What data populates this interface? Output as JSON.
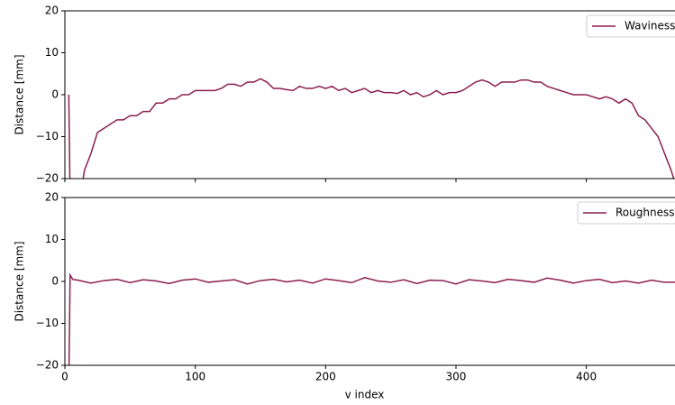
{
  "chart_data": [
    {
      "type": "line",
      "ylabel": "Distance [mm]",
      "legend": "upper right",
      "grid": false,
      "xlim": [
        0,
        468
      ],
      "xticks": [
        0,
        100,
        200,
        300,
        400
      ],
      "ylim": [
        -20,
        20
      ],
      "yticks": [
        {
          "value": -20,
          "label": "−20"
        },
        {
          "value": -10,
          "label": "−10"
        },
        0,
        10,
        20
      ],
      "x": [
        3,
        4,
        13,
        15,
        20,
        25,
        30,
        35,
        40,
        45,
        50,
        55,
        60,
        65,
        70,
        75,
        80,
        85,
        90,
        95,
        100,
        105,
        110,
        115,
        120,
        125,
        130,
        135,
        140,
        145,
        150,
        155,
        160,
        165,
        170,
        175,
        180,
        185,
        190,
        195,
        200,
        205,
        210,
        215,
        220,
        225,
        230,
        235,
        240,
        245,
        250,
        255,
        260,
        265,
        270,
        275,
        280,
        285,
        290,
        295,
        300,
        305,
        310,
        315,
        320,
        325,
        330,
        335,
        340,
        345,
        350,
        355,
        360,
        365,
        370,
        375,
        380,
        385,
        390,
        395,
        400,
        405,
        410,
        415,
        420,
        425,
        430,
        435,
        440,
        445,
        450,
        455,
        460,
        465,
        468
      ],
      "series": [
        {
          "name": "Waviness",
          "color": "#8c1f4f",
          "values": [
            0,
            -25,
            -22,
            -18,
            -14,
            -9,
            -8,
            -7,
            -6,
            -6,
            -5,
            -5,
            -4,
            -4,
            -2,
            -2,
            -1,
            -1,
            0,
            0,
            1,
            1,
            1,
            1,
            1.5,
            2.5,
            2.5,
            2,
            3,
            3,
            3.8,
            3,
            1.5,
            1.5,
            1.2,
            1,
            2,
            1.5,
            1.5,
            2,
            1.5,
            2,
            1,
            1.5,
            0.5,
            1,
            1.5,
            0.5,
            1,
            0.5,
            0.5,
            0.3,
            1,
            0,
            0.5,
            -0.5,
            0,
            1,
            0,
            0.5,
            0.5,
            1,
            2,
            3,
            3.5,
            3,
            2,
            3,
            3,
            3,
            3.5,
            3.5,
            3,
            3,
            2,
            1.5,
            1,
            0.5,
            0,
            0,
            0,
            -0.5,
            -1,
            -0.5,
            -1,
            -2,
            -1,
            -2,
            -5,
            -6,
            -8,
            -10,
            -14,
            -18,
            -21
          ]
        }
      ]
    },
    {
      "type": "line",
      "ylabel": "Distance [mm]",
      "xlabel": "v index",
      "legend": "upper right",
      "grid": false,
      "xlim": [
        0,
        468
      ],
      "xticks": [
        0,
        100,
        200,
        300,
        400
      ],
      "ylim": [
        -20,
        20
      ],
      "yticks": [
        {
          "value": -20,
          "label": "−20"
        },
        {
          "value": -10,
          "label": "−10"
        },
        0,
        10,
        20
      ],
      "x": [
        3,
        4,
        6,
        10,
        20,
        30,
        40,
        50,
        60,
        70,
        80,
        90,
        100,
        110,
        120,
        130,
        140,
        150,
        160,
        170,
        180,
        190,
        200,
        210,
        220,
        230,
        240,
        250,
        260,
        270,
        280,
        290,
        300,
        310,
        320,
        330,
        340,
        350,
        360,
        370,
        380,
        390,
        400,
        410,
        420,
        430,
        440,
        450,
        460,
        468
      ],
      "series": [
        {
          "name": "Roughness",
          "color": "#8c1f4f",
          "values": [
            -25,
            1.5,
            0.5,
            0.3,
            -0.4,
            0.2,
            0.5,
            -0.3,
            0.4,
            0.1,
            -0.5,
            0.3,
            0.6,
            -0.2,
            0.1,
            0.4,
            -0.6,
            0.2,
            0.5,
            -0.1,
            0.3,
            -0.4,
            0.6,
            0.2,
            -0.3,
            0.9,
            0.1,
            -0.2,
            0.4,
            -0.5,
            0.3,
            0.2,
            -0.6,
            0.4,
            0.1,
            -0.3,
            0.5,
            0.2,
            -0.2,
            0.8,
            0.3,
            -0.4,
            0.2,
            0.5,
            -0.3,
            0.1,
            -0.4,
            0.3,
            -0.2,
            -0.2
          ]
        }
      ]
    }
  ]
}
